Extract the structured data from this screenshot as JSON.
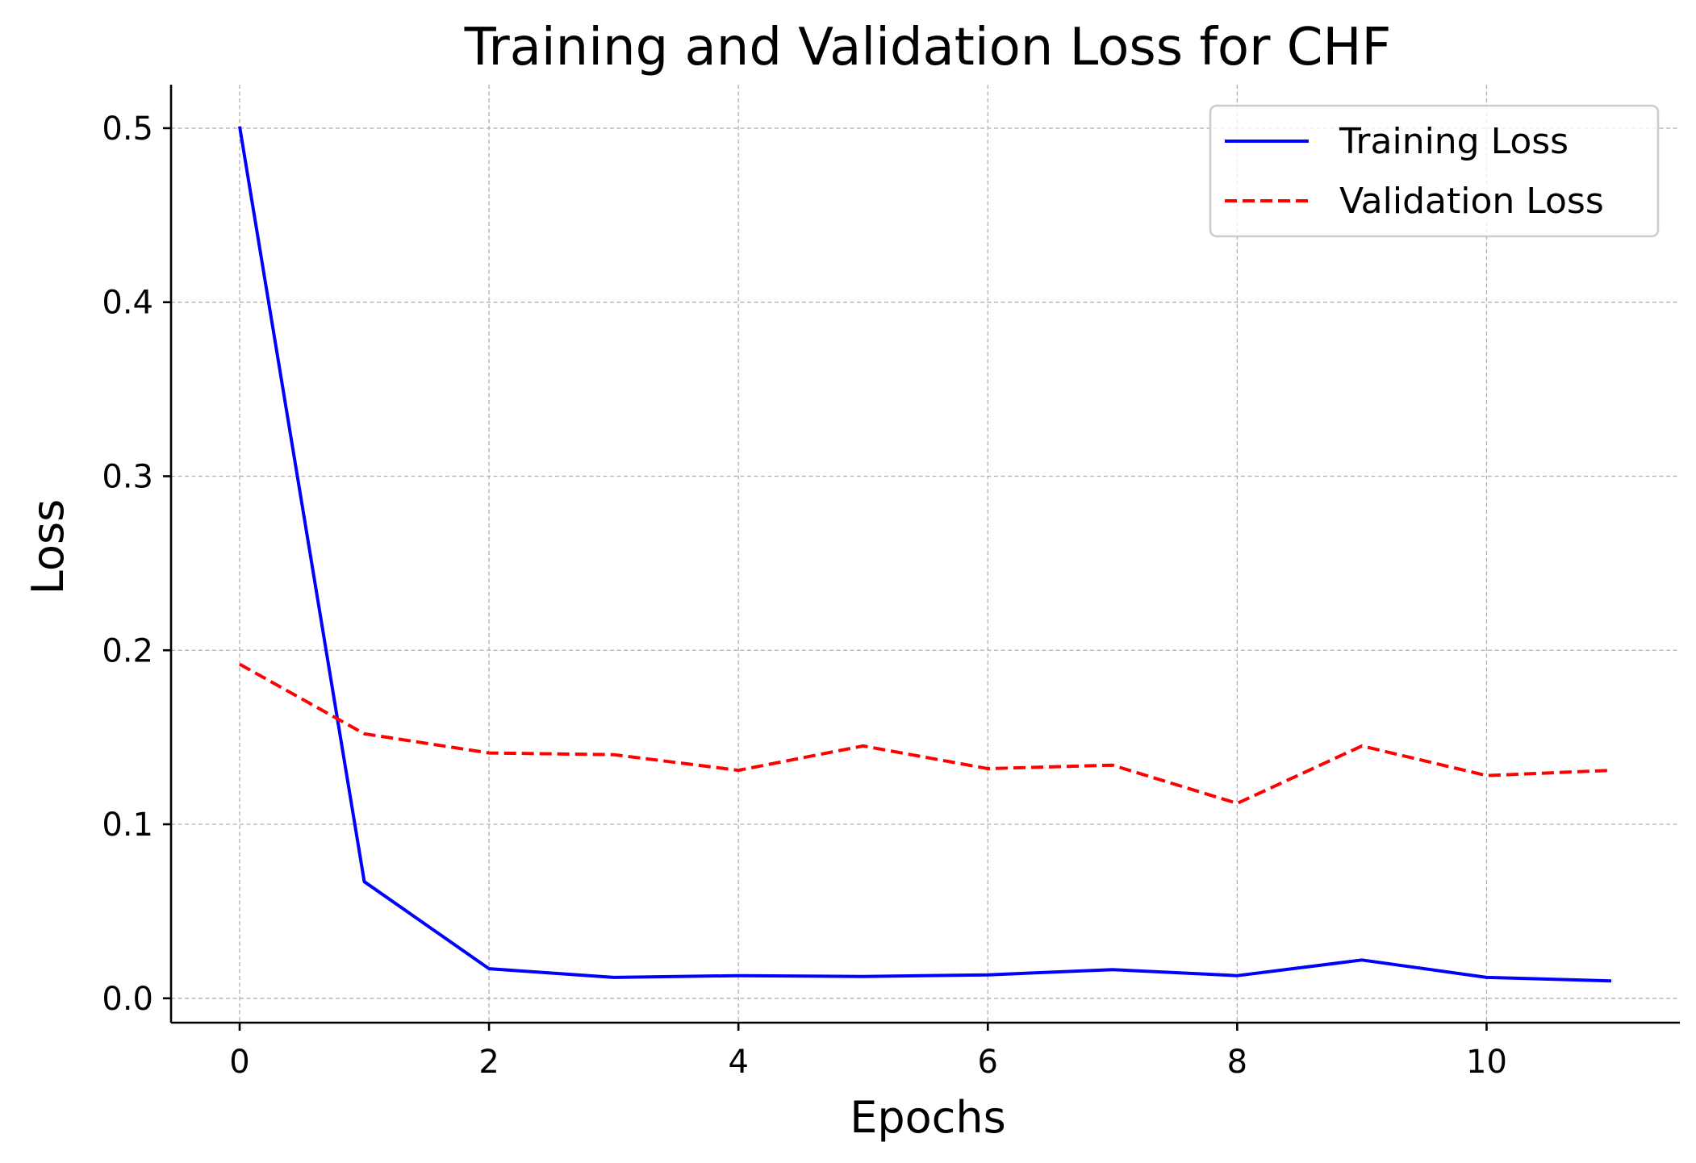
{
  "chart_data": {
    "type": "line",
    "title": "Training and Validation Loss for CHF",
    "xlabel": "Epochs",
    "ylabel": "Loss",
    "x": [
      0,
      1,
      2,
      3,
      4,
      5,
      6,
      7,
      8,
      9,
      10,
      11
    ],
    "series": [
      {
        "name": "Training Loss",
        "values": [
          0.501,
          0.067,
          0.017,
          0.012,
          0.013,
          0.0125,
          0.0135,
          0.0165,
          0.013,
          0.022,
          0.012,
          0.01
        ],
        "color": "#0000ff",
        "style": "solid"
      },
      {
        "name": "Validation Loss",
        "values": [
          0.192,
          0.152,
          0.141,
          0.14,
          0.131,
          0.145,
          0.132,
          0.134,
          0.112,
          0.145,
          0.128,
          0.131
        ],
        "color": "#ff0000",
        "style": "dashed"
      }
    ],
    "xlim": [
      -0.55,
      11.55
    ],
    "ylim": [
      -0.014,
      0.525
    ],
    "xticks": [
      0,
      2,
      4,
      6,
      8,
      10
    ],
    "xtick_labels": [
      "0",
      "2",
      "4",
      "6",
      "8",
      "10"
    ],
    "yticks": [
      0.0,
      0.1,
      0.2,
      0.3,
      0.4,
      0.5
    ],
    "ytick_labels": [
      "0.0",
      "0.1",
      "0.2",
      "0.3",
      "0.4",
      "0.5"
    ],
    "grid": true,
    "legend_position": "top-right"
  }
}
